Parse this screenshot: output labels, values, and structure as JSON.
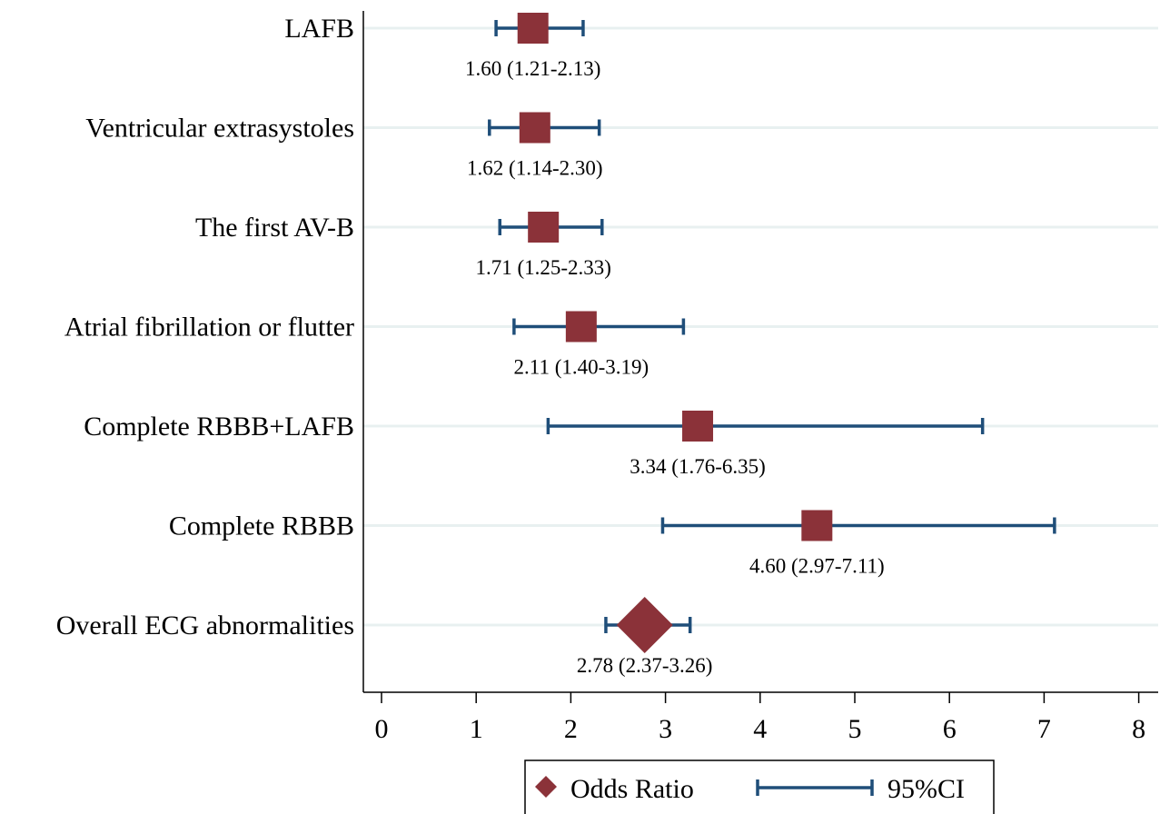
{
  "chart_data": {
    "type": "forest",
    "categories": [
      "LAFB",
      "Ventricular extrasystoles",
      "The first AV-B",
      "Atrial fibrillation or flutter",
      "Complete RBBB+LAFB",
      "Complete RBBB",
      "Overall ECG abnormalities"
    ],
    "series": [
      {
        "name": "Odds Ratio",
        "values": [
          1.6,
          1.62,
          1.71,
          2.11,
          3.34,
          4.6,
          2.78
        ],
        "color": "#8b3239"
      },
      {
        "name": "95%CI",
        "lower": [
          1.21,
          1.14,
          1.25,
          1.4,
          1.76,
          2.97,
          2.37
        ],
        "upper": [
          2.13,
          2.3,
          2.33,
          3.19,
          6.35,
          7.11,
          3.26
        ],
        "color": "#1f4e79"
      }
    ],
    "point_labels": [
      "1.60 (1.21-2.13)",
      "1.62 (1.14-2.30)",
      "1.71 (1.25-2.33)",
      "2.11 (1.40-3.19)",
      "3.34 (1.76-6.35)",
      "4.60 (2.97-7.11)",
      "2.78 (2.37-3.26)"
    ],
    "marker_shapes": [
      "square",
      "square",
      "square",
      "square",
      "square",
      "square",
      "diamond"
    ],
    "xlim": [
      0,
      8
    ],
    "xticks": [
      0,
      1,
      2,
      3,
      4,
      5,
      6,
      7,
      8
    ],
    "title": "",
    "xlabel": "",
    "ylabel": "",
    "grid": "horizontal",
    "legend_position": "bottom",
    "colors": {
      "marker": "#8b3239",
      "ci": "#1f4e79",
      "grid": "#e8f0f0",
      "axis": "#000000"
    }
  }
}
